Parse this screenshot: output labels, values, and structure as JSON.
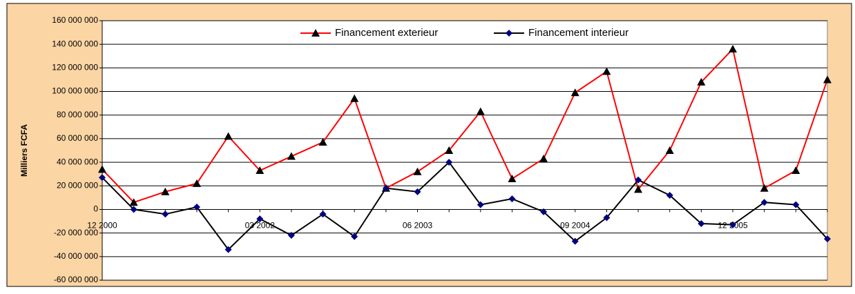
{
  "chart_data": {
    "type": "line",
    "y_label": "Milliers FCFA",
    "categories": [
      "12 2000",
      null,
      null,
      null,
      null,
      "03 2002",
      null,
      null,
      null,
      null,
      "06 2003",
      null,
      null,
      null,
      null,
      "09 2004",
      null,
      null,
      null,
      null,
      "12 2005",
      null,
      null,
      null
    ],
    "series": [
      {
        "name": "Financement exterieur",
        "color": "#ff0000",
        "marker": "triangle",
        "marker_color": "#000000",
        "values": [
          34000000,
          6000000,
          15000000,
          22000000,
          62000000,
          33000000,
          45000000,
          57000000,
          94000000,
          18000000,
          32000000,
          50000000,
          83000000,
          26000000,
          43000000,
          99000000,
          117000000,
          17000000,
          50000000,
          108000000,
          136000000,
          18000000,
          33000000,
          110000000
        ]
      },
      {
        "name": "Financement interieur",
        "color": "#000000",
        "marker": "diamond",
        "marker_color": "#000080",
        "values": [
          27000000,
          0,
          -4000000,
          2000000,
          -34000000,
          -8000000,
          -22000000,
          -4000000,
          -23000000,
          18000000,
          15000000,
          40000000,
          4000000,
          9000000,
          -2000000,
          -27000000,
          -7000000,
          25000000,
          12000000,
          -12000000,
          -13000000,
          6000000,
          4000000,
          -25000000
        ]
      }
    ],
    "ylim": [
      -60000000,
      160000000
    ],
    "yticks": [
      {
        "value": -60000000,
        "label": "-60 000 000"
      },
      {
        "value": -40000000,
        "label": "-40 000 000"
      },
      {
        "value": -20000000,
        "label": "-20 000 000"
      },
      0,
      {
        "value": 20000000,
        "label": "20 000 000"
      },
      {
        "value": 40000000,
        "label": "40 000 000"
      },
      {
        "value": 60000000,
        "label": "60 000 000"
      },
      {
        "value": 80000000,
        "label": "80 000 000"
      },
      {
        "value": 100000000,
        "label": "100 000 000"
      },
      {
        "value": 120000000,
        "label": "120 000 000"
      },
      {
        "value": 140000000,
        "label": "140 000 000"
      },
      {
        "value": 160000000,
        "label": "160 000 000"
      }
    ],
    "grid": true
  }
}
